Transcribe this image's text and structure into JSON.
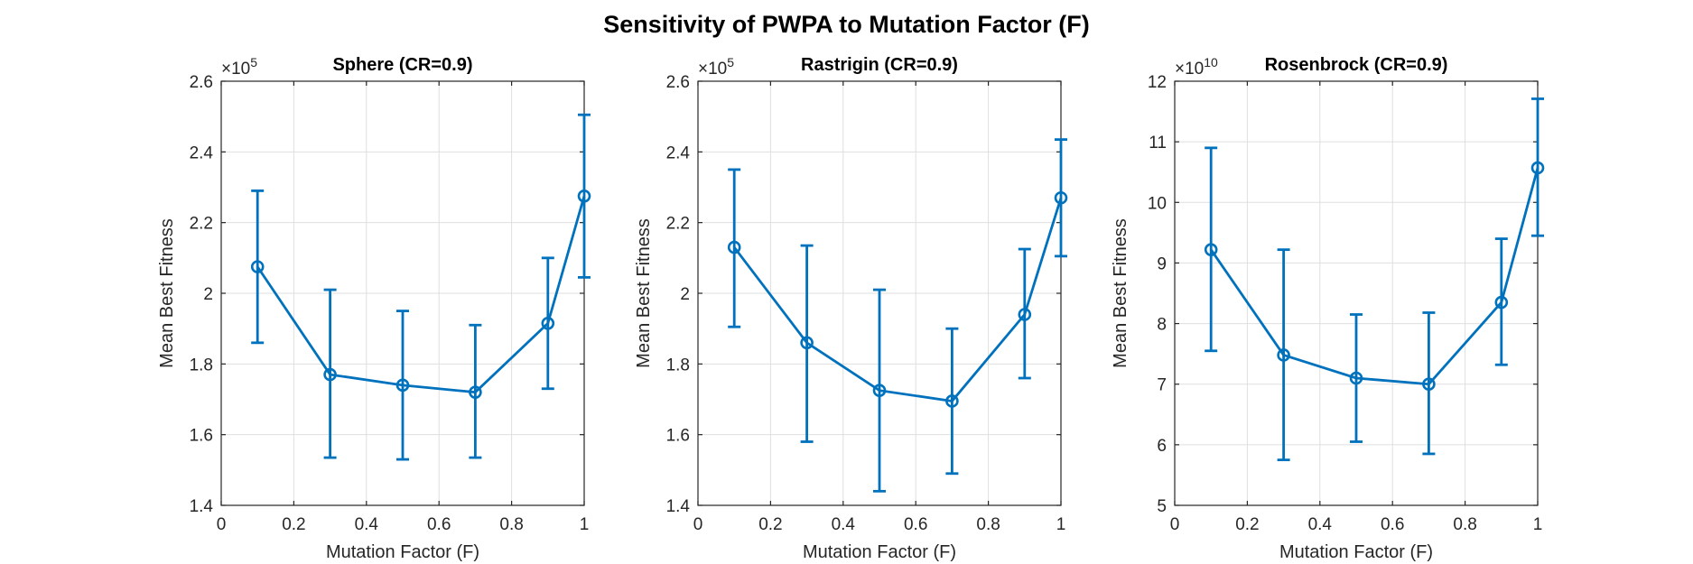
{
  "figure": {
    "title": "Sensitivity of PWPA to Mutation Factor (F)"
  },
  "colors": {
    "series": "#0072BD",
    "axis": "#262626",
    "grid": "#dfdfdf",
    "background": "#ffffff"
  },
  "chart_data": [
    {
      "type": "line",
      "title": "Sphere (CR=0.9)",
      "xlabel": "Mutation Factor (F)",
      "ylabel": "Mean Best Fitness",
      "exponent_label": "×10",
      "exponent": "5",
      "exponent_multiplier": 100000,
      "grid": true,
      "marker": "circle",
      "error_bars": true,
      "xlim": [
        0,
        1
      ],
      "ylim": [
        140000,
        260000
      ],
      "xticks": [
        0,
        0.2,
        0.4,
        0.6,
        0.8,
        1
      ],
      "xtick_labels": [
        "0",
        "0.2",
        "0.4",
        "0.6",
        "0.8",
        "1"
      ],
      "yticks": [
        140000,
        160000,
        180000,
        200000,
        220000,
        240000,
        260000
      ],
      "ytick_labels": [
        "1.4",
        "1.6",
        "1.8",
        "2",
        "2.2",
        "2.4",
        "2.6"
      ],
      "x": [
        0.1,
        0.3,
        0.5,
        0.7,
        0.9,
        1.0
      ],
      "y": [
        207500,
        177000,
        174000,
        172000,
        191500,
        227500
      ],
      "err_low": [
        186000,
        153500,
        153000,
        153500,
        173000,
        204500
      ],
      "err_high": [
        229000,
        201000,
        195000,
        191000,
        210000,
        250500
      ]
    },
    {
      "type": "line",
      "title": "Rastrigin (CR=0.9)",
      "xlabel": "Mutation Factor (F)",
      "ylabel": "Mean Best Fitness",
      "exponent_label": "×10",
      "exponent": "5",
      "exponent_multiplier": 100000,
      "grid": true,
      "marker": "circle",
      "error_bars": true,
      "xlim": [
        0,
        1
      ],
      "ylim": [
        140000,
        260000
      ],
      "xticks": [
        0,
        0.2,
        0.4,
        0.6,
        0.8,
        1
      ],
      "xtick_labels": [
        "0",
        "0.2",
        "0.4",
        "0.6",
        "0.8",
        "1"
      ],
      "yticks": [
        140000,
        160000,
        180000,
        200000,
        220000,
        240000,
        260000
      ],
      "ytick_labels": [
        "1.4",
        "1.6",
        "1.8",
        "2",
        "2.2",
        "2.4",
        "2.6"
      ],
      "x": [
        0.1,
        0.3,
        0.5,
        0.7,
        0.9,
        1.0
      ],
      "y": [
        213000,
        186000,
        172500,
        169500,
        194000,
        227000
      ],
      "err_low": [
        190500,
        158000,
        144000,
        149000,
        176000,
        210500
      ],
      "err_high": [
        235000,
        213500,
        201000,
        190000,
        212500,
        243500
      ]
    },
    {
      "type": "line",
      "title": "Rosenbrock (CR=0.9)",
      "xlabel": "Mutation Factor (F)",
      "ylabel": "Mean Best Fitness",
      "exponent_label": "×10",
      "exponent": "10",
      "exponent_multiplier": 10000000000,
      "grid": true,
      "marker": "circle",
      "error_bars": true,
      "xlim": [
        0,
        1
      ],
      "ylim": [
        50000000000,
        120000000000
      ],
      "xticks": [
        0,
        0.2,
        0.4,
        0.6,
        0.8,
        1
      ],
      "xtick_labels": [
        "0",
        "0.2",
        "0.4",
        "0.6",
        "0.8",
        "1"
      ],
      "yticks": [
        50000000000,
        60000000000,
        70000000000,
        80000000000,
        90000000000,
        100000000000,
        110000000000,
        120000000000
      ],
      "ytick_labels": [
        "5",
        "6",
        "7",
        "8",
        "9",
        "10",
        "11",
        "12"
      ],
      "x": [
        0.1,
        0.3,
        0.5,
        0.7,
        0.9,
        1.0
      ],
      "y": [
        92200000000,
        74800000000,
        71000000000,
        70000000000,
        83500000000,
        105700000000
      ],
      "err_low": [
        75500000000,
        57500000000,
        60500000000,
        58500000000,
        73200000000,
        94500000000
      ],
      "err_high": [
        109000000000,
        92200000000,
        81500000000,
        81800000000,
        94000000000,
        117100000000
      ]
    }
  ]
}
